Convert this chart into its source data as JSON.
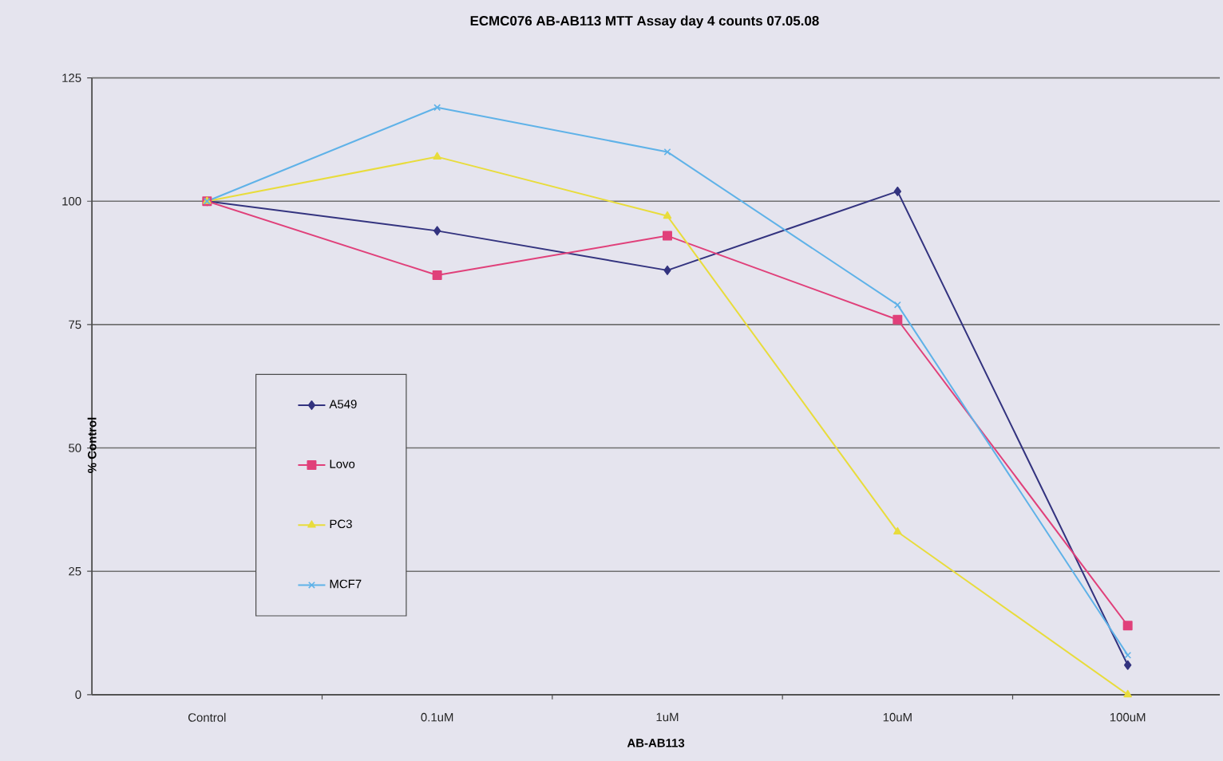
{
  "chart_data": {
    "type": "line",
    "title": "ECMC076 AB-AB113 MTT Assay day 4 counts 07.05.08",
    "xlabel": "AB-AB113",
    "ylabel": "% Control",
    "categories": [
      "Control",
      "0.1uM",
      "1uM",
      "10uM",
      "100uM"
    ],
    "series": [
      {
        "name": "A549",
        "color": "#33337f",
        "marker": "diamond",
        "values": [
          100,
          94,
          86,
          102,
          6
        ]
      },
      {
        "name": "Lovo",
        "color": "#e0407a",
        "marker": "square",
        "values": [
          100,
          85,
          93,
          76,
          14
        ]
      },
      {
        "name": "PC3",
        "color": "#e8dc3c",
        "marker": "triangle",
        "values": [
          100,
          109,
          97,
          33,
          0
        ]
      },
      {
        "name": "MCF7",
        "color": "#5fb2e8",
        "marker": "cross",
        "values": [
          100,
          119,
          110,
          79,
          8
        ]
      }
    ],
    "ylim": [
      0,
      125
    ],
    "yticks": [
      0,
      25,
      50,
      75,
      100,
      125
    ],
    "grid": "y",
    "legend": "left"
  }
}
